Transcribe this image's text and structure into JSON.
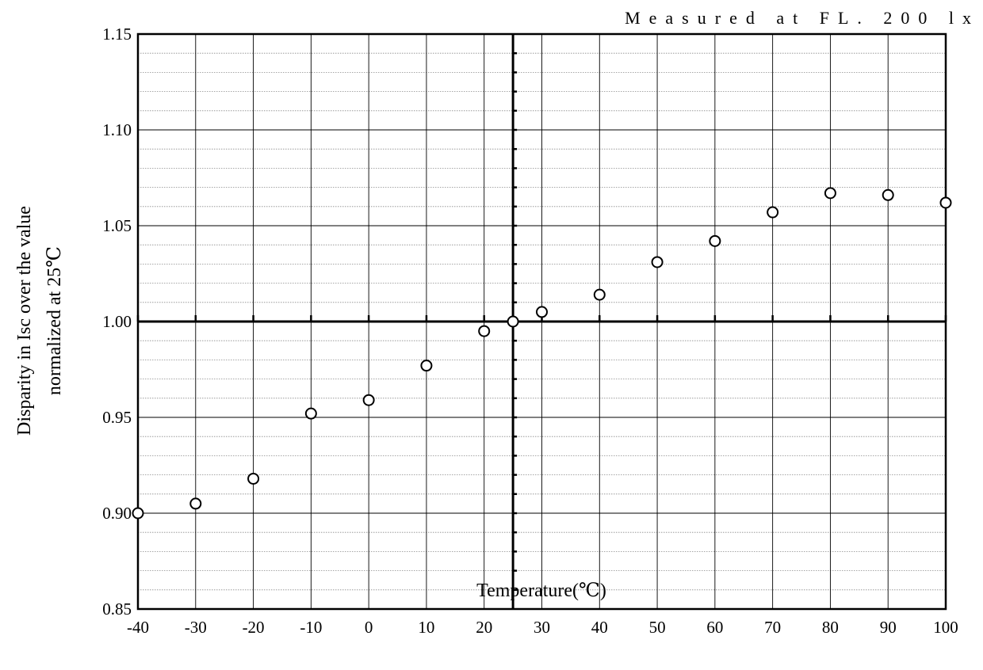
{
  "chart_data": {
    "type": "scatter",
    "title": "",
    "annotation": "Measured at FL. 200 lx",
    "xlabel": "Temperature(℃)",
    "ylabel_line1": "Disparity in Isc over the value",
    "ylabel_line2": "normalized at 25℃",
    "xlim": [
      -40,
      100
    ],
    "ylim": [
      0.85,
      1.15
    ],
    "x_ticks": [
      -40,
      -30,
      -20,
      -10,
      0,
      10,
      20,
      30,
      40,
      50,
      60,
      70,
      80,
      90,
      100
    ],
    "x_tick_labels": [
      "-40",
      "-30",
      "-20",
      "-10",
      "0",
      "10",
      "20",
      "30",
      "40",
      "50",
      "60",
      "70",
      "80",
      "90",
      "100"
    ],
    "y_ticks": [
      0.85,
      0.9,
      0.95,
      1.0,
      1.05,
      1.1,
      1.15
    ],
    "y_tick_labels": [
      "0.85",
      "0.90",
      "0.95",
      "1.00",
      "1.05",
      "1.10",
      "1.15"
    ],
    "reference_lines": {
      "x": 25,
      "y": 1.0
    },
    "grid": true,
    "marker": "open-circle",
    "series": [
      {
        "x": [
          -40,
          -30,
          -20,
          -10,
          0,
          10,
          20,
          25,
          30,
          40,
          50,
          60,
          70,
          80,
          90,
          100
        ],
        "y": [
          0.9,
          0.905,
          0.918,
          0.952,
          0.959,
          0.977,
          0.995,
          1.0,
          1.005,
          1.014,
          1.031,
          1.042,
          1.057,
          1.067,
          1.066,
          1.062
        ]
      }
    ]
  }
}
